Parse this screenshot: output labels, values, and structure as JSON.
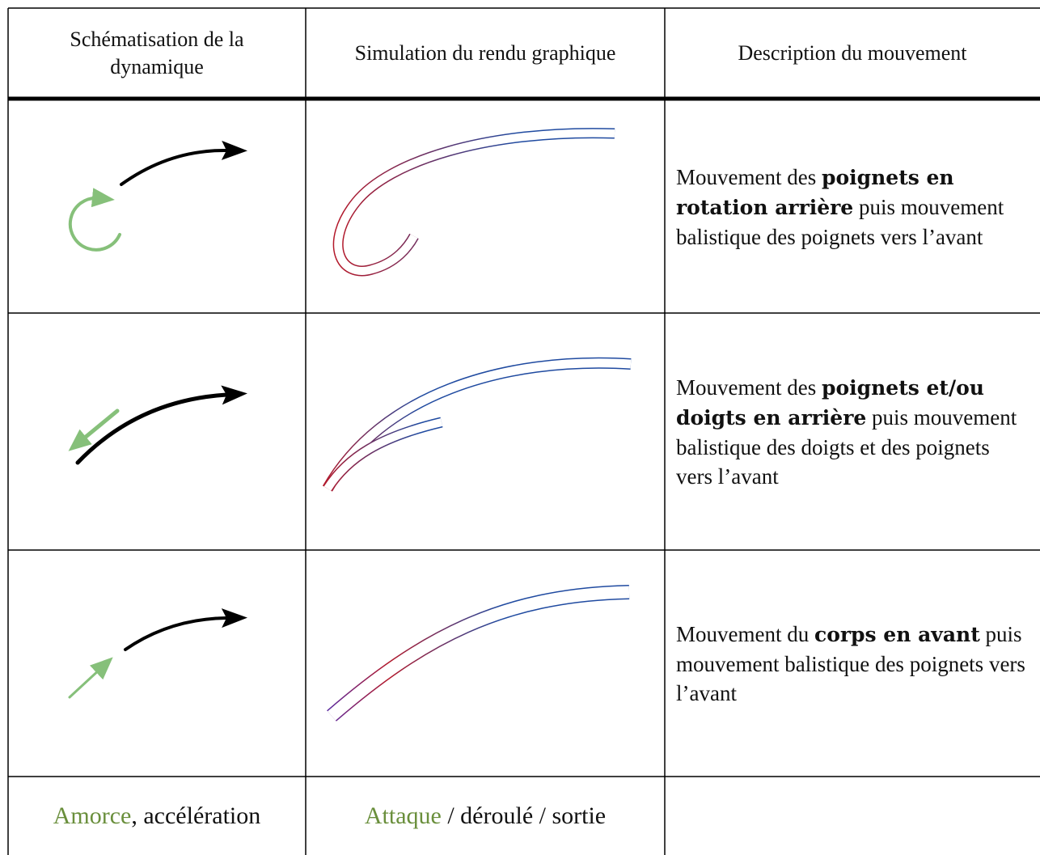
{
  "table": {
    "header": [
      "Schématisation de la dynamique",
      "Simulation du rendu graphique",
      "Description du mouvement"
    ],
    "rows": [
      {
        "description": {
          "before": "Mouvement des ",
          "emphasis": "poignets en rotation arrière",
          "after": " puis mouvement balistique des poignets vers l’avant"
        }
      },
      {
        "description": {
          "before": "Mouvement des ",
          "emphasis": "poignets et/ou doigts en arrière",
          "after": " puis mouvement balistique des doigts et des poignets vers l’avant"
        }
      },
      {
        "description": {
          "before": "Mouvement du ",
          "emphasis": "corps en avant",
          "after": " puis mouvement balistique des poignets vers l’avant"
        }
      }
    ],
    "footer": [
      {
        "highlight": "Amorce",
        "rest": ", accélération"
      },
      {
        "highlight": "Attaque",
        "rest": " / déroulé / sortie"
      }
    ]
  }
}
